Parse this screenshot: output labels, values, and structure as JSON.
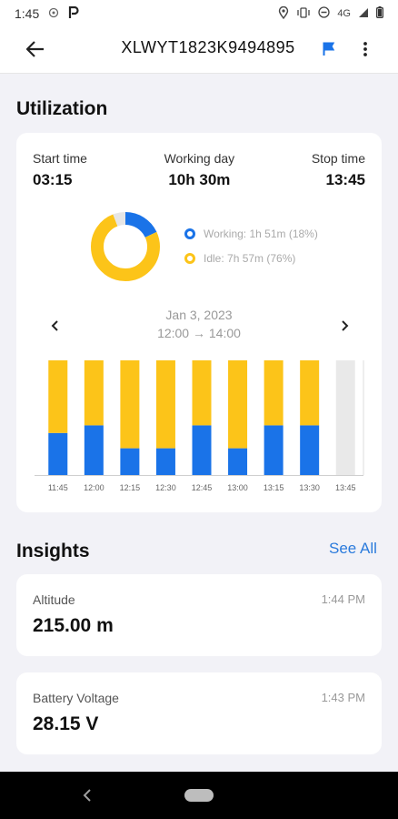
{
  "status_bar": {
    "time": "1:45",
    "network": "4G"
  },
  "app_bar": {
    "title": "XLWYT1823K9494895",
    "back_icon": "arrow-left-icon",
    "flag_icon": "flag-icon",
    "more_icon": "more-vert-icon"
  },
  "utilization": {
    "section_title": "Utilization",
    "start_time": {
      "label": "Start time",
      "value": "03:15"
    },
    "working_day": {
      "label": "Working day",
      "value": "10h 30m"
    },
    "stop_time": {
      "label": "Stop time",
      "value": "13:45"
    },
    "legend": [
      {
        "label": "Working: 1h 51m (18%)",
        "color": "#1a73e8"
      },
      {
        "label": "Idle: 7h 57m (76%)",
        "color": "#fcc419"
      }
    ],
    "date": "Jan 3, 2023",
    "range": "12:00 → 14:00"
  },
  "chart_data": {
    "type": "bar",
    "categories": [
      "11:45",
      "12:00",
      "12:15",
      "12:30",
      "12:45",
      "13:00",
      "13:15",
      "13:30",
      "13:45"
    ],
    "series": [
      {
        "values": [
          5.5,
          6.5,
          3.5,
          3.5,
          6.5,
          3.5,
          6.5,
          6.5,
          0
        ],
        "color": "#1a73e8"
      },
      {
        "values": [
          9.5,
          8.5,
          11.5,
          11.5,
          8.5,
          11.5,
          8.5,
          8.5,
          0
        ],
        "color": "#fcc419"
      }
    ],
    "remainder": [
      0,
      0,
      0,
      0,
      0,
      0,
      0,
      0,
      15
    ],
    "remainder_color": "#e9e9e9",
    "ylim": [
      0,
      15
    ]
  },
  "donut": {
    "working": 0.18,
    "idle": 0.76,
    "other": 0.06,
    "colors": {
      "working": "#1a73e8",
      "idle": "#fcc419",
      "other": "#e6e6e6"
    }
  },
  "insights": {
    "section_title": "Insights",
    "see_all": "See All",
    "items": [
      {
        "name": "Altitude",
        "time": "1:44 PM",
        "value": "215.00 m"
      },
      {
        "name": "Battery Voltage",
        "time": "1:43 PM",
        "value": "28.15 V"
      }
    ]
  }
}
